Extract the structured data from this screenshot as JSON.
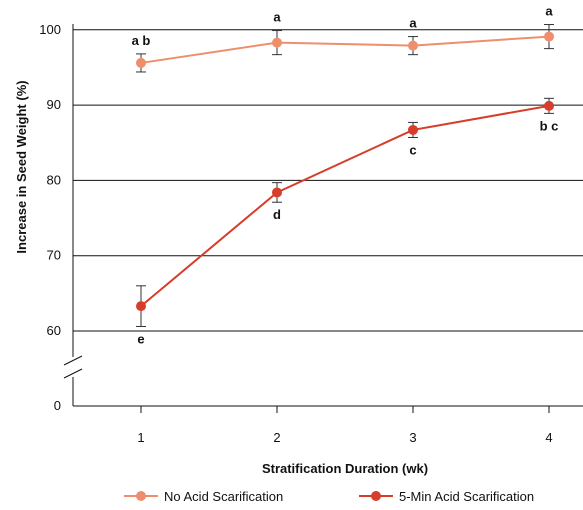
{
  "chart_data": {
    "type": "line",
    "xlabel": "Stratification Duration (wk)",
    "ylabel": "Increase in Seed Weight (%)",
    "categories": [
      "1",
      "2",
      "3",
      "4"
    ],
    "y_ticks": [
      "0",
      "60",
      "70",
      "80",
      "90",
      "100"
    ],
    "ylim": [
      55,
      102
    ],
    "axis_break": true,
    "grid": "horizontal",
    "legend_position": "bottom",
    "series": [
      {
        "name": "No Acid Scarification",
        "color": "#ee8e6c",
        "values": [
          95.6,
          98.3,
          97.9,
          99.1
        ],
        "error": [
          1.2,
          1.6,
          1.2,
          1.6
        ],
        "labels": [
          "a b",
          "a",
          "a",
          "a"
        ],
        "label_position": "above"
      },
      {
        "name": "5-Min Acid Scarification",
        "color": "#d63d2a",
        "values": [
          63.3,
          78.4,
          86.7,
          89.9
        ],
        "error": [
          2.7,
          1.3,
          1.0,
          1.0
        ],
        "labels": [
          "e",
          "d",
          "c",
          "b c"
        ],
        "label_position": "below"
      }
    ]
  }
}
